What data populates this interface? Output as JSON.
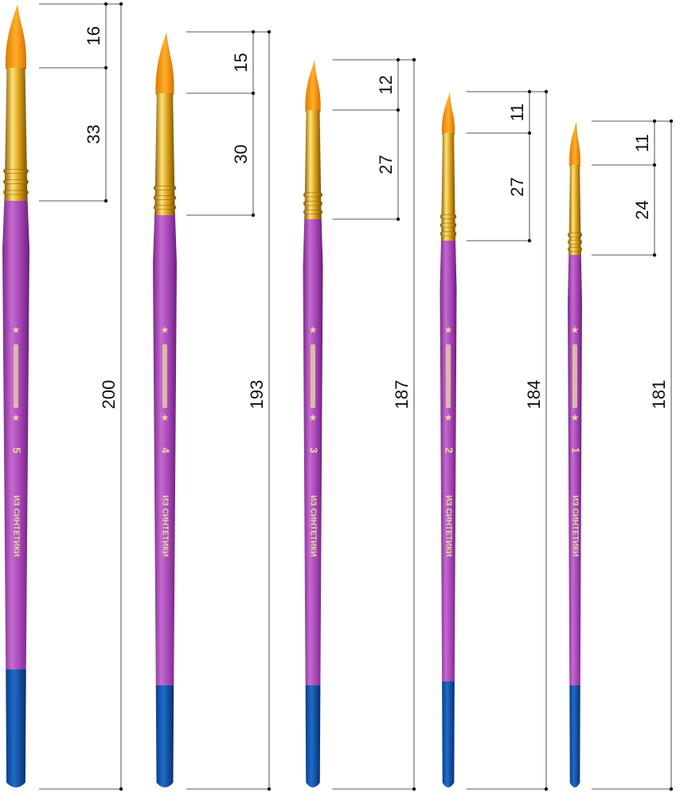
{
  "brushes": [
    {
      "size": 5,
      "material": "ИЗ СИНТЕТИКИ",
      "tip": 16,
      "ferrule": 33,
      "total": 200
    },
    {
      "size": 4,
      "material": "ИЗ СИНТЕТИКИ",
      "tip": 15,
      "ferrule": 30,
      "total": 193
    },
    {
      "size": 3,
      "material": "ИЗ СИНТЕТИКИ",
      "tip": 12,
      "ferrule": 27,
      "total": 187
    },
    {
      "size": 2,
      "material": "ИЗ СИНТЕТИКИ",
      "tip": 11,
      "ferrule": 27,
      "total": 184
    },
    {
      "size": 1,
      "material": "ИЗ СИНТЕТИКИ",
      "tip": 11,
      "ferrule": 24,
      "total": 181
    }
  ]
}
